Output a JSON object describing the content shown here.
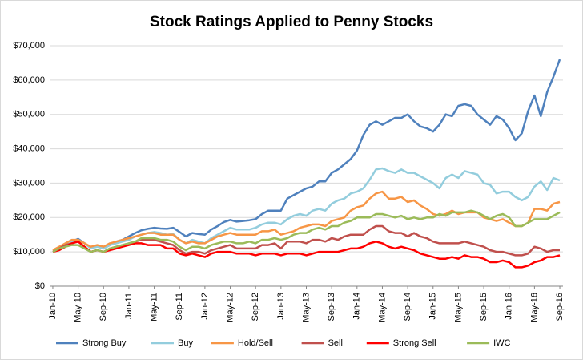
{
  "chart_data": {
    "type": "line",
    "title": "Stock Ratings Applied to Penny Stocks",
    "categories": [
      "Jan-10",
      null,
      null,
      null,
      "May-10",
      null,
      null,
      null,
      "Sep-10",
      null,
      null,
      null,
      "Jan-11",
      null,
      null,
      null,
      "May-11",
      null,
      null,
      null,
      "Sep-11",
      null,
      null,
      null,
      "Jan-12",
      null,
      null,
      null,
      "May-12",
      null,
      null,
      null,
      "Sep-12",
      null,
      null,
      null,
      "Jan-13",
      null,
      null,
      null,
      "May-13",
      null,
      null,
      null,
      "Sep-13",
      null,
      null,
      null,
      "Jan-14",
      null,
      null,
      null,
      "May-14",
      null,
      null,
      null,
      "Sep-14",
      null,
      null,
      null,
      "Jan-15",
      null,
      null,
      null,
      "May-15",
      null,
      null,
      null,
      "Sep-15",
      null,
      null,
      null,
      "Jan-16",
      null,
      null,
      null,
      "May-16",
      null,
      null,
      null,
      "Sep-16"
    ],
    "series": [
      {
        "name": "Strong Buy",
        "color": "#4f81bd",
        "values": [
          10500,
          11000,
          12000,
          13000,
          13800,
          12500,
          11200,
          11800,
          11000,
          12000,
          13000,
          13500,
          14500,
          15500,
          16300,
          16700,
          17000,
          16800,
          16700,
          17000,
          15800,
          14500,
          15500,
          15200,
          15000,
          16500,
          17500,
          18700,
          19300,
          18800,
          19000,
          19200,
          19500,
          21000,
          22000,
          22000,
          22000,
          25500,
          26500,
          27500,
          28500,
          29000,
          30500,
          30500,
          33000,
          34000,
          35500,
          37000,
          39500,
          44000,
          47000,
          48000,
          47000,
          48000,
          49000,
          49000,
          50000,
          48000,
          46500,
          46000,
          45000,
          47000,
          50000,
          49500,
          52500,
          53000,
          52500,
          50000,
          48500,
          47000,
          49500,
          48500,
          46000,
          42500,
          44500,
          51000,
          55500,
          49500,
          56500,
          61000,
          66000
        ]
      },
      {
        "name": "Buy",
        "color": "#93cddd",
        "values": [
          10000,
          11000,
          12000,
          13000,
          13500,
          12500,
          11000,
          11500,
          11000,
          12000,
          12500,
          13000,
          13500,
          14500,
          15000,
          15500,
          15800,
          15500,
          15000,
          15200,
          13500,
          12500,
          13500,
          13000,
          12500,
          14000,
          15000,
          16000,
          17000,
          16500,
          16500,
          16500,
          17000,
          18000,
          18500,
          18500,
          18000,
          19500,
          20500,
          21000,
          20500,
          22000,
          22500,
          22000,
          24000,
          25000,
          25500,
          27000,
          27500,
          28500,
          31000,
          34000,
          34300,
          33500,
          33000,
          34000,
          33000,
          33000,
          32000,
          31000,
          30000,
          28500,
          31500,
          32500,
          31500,
          33500,
          33000,
          32500,
          30000,
          29500,
          27000,
          27500,
          27500,
          26000,
          25000,
          26000,
          29000,
          30500,
          28000,
          31500,
          30800
        ]
      },
      {
        "name": "Hold/Sell",
        "color": "#f79646",
        "values": [
          10500,
          11500,
          12500,
          13500,
          13500,
          12500,
          11500,
          12000,
          11500,
          12500,
          13000,
          13500,
          14000,
          14500,
          15000,
          15500,
          15500,
          15000,
          15000,
          15000,
          13500,
          12500,
          13000,
          12500,
          12500,
          13500,
          14500,
          15000,
          15500,
          15000,
          15000,
          15000,
          15000,
          16000,
          16000,
          16500,
          15000,
          15500,
          16000,
          17000,
          17500,
          18000,
          18000,
          17500,
          19000,
          19500,
          20000,
          22000,
          23000,
          23500,
          25500,
          27000,
          27500,
          25500,
          25500,
          26000,
          24500,
          25000,
          23500,
          22500,
          21000,
          20500,
          21000,
          22000,
          21000,
          21500,
          21500,
          21500,
          20000,
          19500,
          19000,
          19500,
          18500,
          17500,
          17500,
          18500,
          22500,
          22500,
          22000,
          24000,
          24500
        ]
      },
      {
        "name": "Sell",
        "color": "#c0504d",
        "values": [
          10000,
          11000,
          12000,
          12500,
          13000,
          11500,
          10000,
          10500,
          10000,
          11000,
          11500,
          12000,
          12500,
          13000,
          13500,
          13500,
          13500,
          13000,
          12500,
          12000,
          10500,
          9500,
          10000,
          10000,
          9500,
          10500,
          11000,
          11500,
          12000,
          11000,
          11000,
          11000,
          11000,
          12000,
          12000,
          12500,
          11000,
          13000,
          13000,
          13000,
          12500,
          13500,
          13500,
          13000,
          14000,
          13500,
          14500,
          15000,
          15000,
          15000,
          16500,
          17500,
          17500,
          16000,
          15500,
          15500,
          14500,
          15500,
          14500,
          14000,
          13000,
          12500,
          12500,
          12500,
          12500,
          13000,
          12500,
          12000,
          11500,
          10500,
          10000,
          10000,
          9500,
          9000,
          9000,
          9500,
          11500,
          11000,
          10000,
          10500,
          10500
        ]
      },
      {
        "name": "Strong Sell",
        "color": "#ff0000",
        "values": [
          10000,
          10500,
          11500,
          12500,
          13000,
          11500,
          10000,
          10500,
          10000,
          10500,
          11000,
          11500,
          12000,
          12500,
          12500,
          12000,
          12000,
          12000,
          11000,
          11000,
          9500,
          9000,
          9500,
          9000,
          8500,
          9500,
          10000,
          10000,
          10000,
          9500,
          9500,
          9500,
          9000,
          9500,
          9500,
          9500,
          9000,
          9500,
          9500,
          9500,
          9000,
          9500,
          10000,
          10000,
          10000,
          10000,
          10500,
          11000,
          11000,
          11500,
          12500,
          13000,
          12500,
          11500,
          11000,
          11500,
          11000,
          10500,
          9500,
          9000,
          8500,
          8000,
          8000,
          8500,
          8000,
          9000,
          8500,
          8500,
          8000,
          7000,
          7000,
          7500,
          7000,
          5500,
          5500,
          6000,
          7000,
          7500,
          8500,
          8500,
          9000
        ]
      },
      {
        "name": "IWC",
        "color": "#9bbb59",
        "values": [
          10000,
          11000,
          11500,
          12000,
          12000,
          11000,
          10000,
          10500,
          10000,
          11000,
          11500,
          12000,
          12500,
          13000,
          14000,
          14000,
          14000,
          13500,
          13500,
          13000,
          11500,
          10500,
          11500,
          11500,
          11000,
          12000,
          12500,
          13000,
          13000,
          12500,
          12500,
          13000,
          12500,
          13500,
          13500,
          14000,
          13500,
          14000,
          15000,
          15500,
          15500,
          16500,
          17000,
          16500,
          17500,
          17500,
          18500,
          19000,
          20000,
          20000,
          20000,
          21000,
          21000,
          20500,
          20000,
          20500,
          19500,
          20000,
          19500,
          20000,
          20000,
          21000,
          20500,
          21500,
          21500,
          21500,
          22000,
          21500,
          20500,
          19500,
          20500,
          21000,
          20000,
          17500,
          17500,
          18500,
          19500,
          19500,
          19500,
          20500,
          21500
        ]
      }
    ],
    "ylim": [
      0,
      70000
    ],
    "yticks": [
      {
        "value": 0,
        "label": "$0"
      },
      {
        "value": 10000,
        "label": "$10,000"
      },
      {
        "value": 20000,
        "label": "$20,000"
      },
      {
        "value": 30000,
        "label": "$30,000"
      },
      {
        "value": 40000,
        "label": "$40,000"
      },
      {
        "value": 50000,
        "label": "$50,000"
      },
      {
        "value": 60000,
        "label": "$60,000"
      },
      {
        "value": 70000,
        "label": "$70,000"
      }
    ],
    "grid": true,
    "legend": "bottom"
  }
}
